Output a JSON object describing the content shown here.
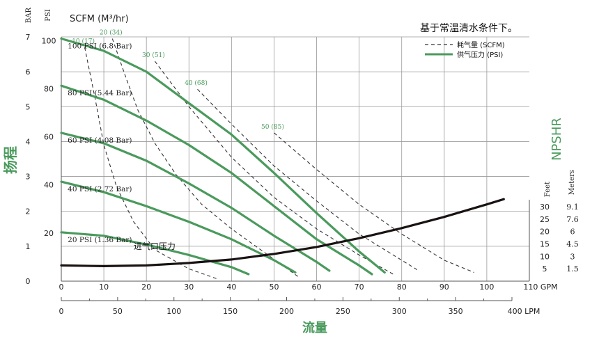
{
  "chart_data": {
    "type": "line",
    "note": "基于常温清水条件下。",
    "legend": [
      {
        "label": "耗气量 (SCFM)",
        "style": "dashed",
        "color": "#333333"
      },
      {
        "label": "供气压力 (PSI)",
        "style": "solid",
        "color": "#4a9a5c"
      }
    ],
    "y_left_bar_title": "BAR",
    "y_left_psi_title": "PSI",
    "y_left_title": "扬程",
    "x_title": "流量",
    "right_title": "NPSHR",
    "right_feet_title": "Feet",
    "right_meters_title": "Meters",
    "scfm_title": "SCFM (M³/hr)",
    "x_gpm_unit": "110 GPM",
    "x_lpm_unit": "400 LPM",
    "x_gpm_ticks": [
      "0",
      "10",
      "20",
      "30",
      "40",
      "50",
      "60",
      "70",
      "80",
      "90",
      "100"
    ],
    "x_lpm_ticks": [
      "0",
      "50",
      "100",
      "150",
      "200",
      "250",
      "300",
      "350"
    ],
    "y_bar_ticks": [
      "0",
      "1",
      "2",
      "3",
      "4",
      "5",
      "6",
      "7"
    ],
    "y_psi_ticks": [
      "20",
      "40",
      "60",
      "80",
      "100"
    ],
    "npshr_feet_ticks": [
      "5",
      "10",
      "15",
      "20",
      "25",
      "30"
    ],
    "npshr_meters_ticks": [
      "1.5",
      "3",
      "4.5",
      "6",
      "7.6",
      "9.1"
    ],
    "xlim": [
      0,
      110
    ],
    "ylim": [
      0,
      7
    ],
    "pressure_curves": [
      {
        "name": "100 PSI (6.8 Bar)",
        "points": [
          [
            0,
            6.95
          ],
          [
            10,
            6.6
          ],
          [
            20,
            6.0
          ],
          [
            30,
            5.1
          ],
          [
            40,
            4.2
          ],
          [
            50,
            3.1
          ],
          [
            60,
            1.95
          ],
          [
            70,
            0.85
          ],
          [
            76,
            0.25
          ]
        ]
      },
      {
        "name": "80 PSI (5.44 Bar)",
        "points": [
          [
            0,
            5.6
          ],
          [
            10,
            5.2
          ],
          [
            20,
            4.6
          ],
          [
            30,
            3.9
          ],
          [
            40,
            3.1
          ],
          [
            50,
            2.15
          ],
          [
            60,
            1.2
          ],
          [
            70,
            0.45
          ],
          [
            73,
            0.2
          ]
        ]
      },
      {
        "name": "60 PSI (4.08 Bar)",
        "points": [
          [
            0,
            4.25
          ],
          [
            10,
            3.95
          ],
          [
            20,
            3.45
          ],
          [
            30,
            2.8
          ],
          [
            40,
            2.1
          ],
          [
            50,
            1.3
          ],
          [
            60,
            0.55
          ],
          [
            63,
            0.3
          ]
        ]
      },
      {
        "name": "40 PSI (2.72 Bar)",
        "points": [
          [
            0,
            2.85
          ],
          [
            10,
            2.55
          ],
          [
            20,
            2.15
          ],
          [
            30,
            1.7
          ],
          [
            40,
            1.2
          ],
          [
            50,
            0.6
          ],
          [
            55,
            0.25
          ]
        ]
      },
      {
        "name": "20 PSI (1.36 Bar)",
        "points": [
          [
            0,
            1.4
          ],
          [
            10,
            1.3
          ],
          [
            20,
            1.05
          ],
          [
            30,
            0.75
          ],
          [
            40,
            0.4
          ],
          [
            44,
            0.2
          ]
        ]
      }
    ],
    "air_curves": [
      {
        "name": "10 (17)",
        "points": [
          [
            5.5,
            6.7
          ],
          [
            8,
            5.2
          ],
          [
            10,
            3.9
          ],
          [
            13,
            2.7
          ],
          [
            17,
            1.7
          ],
          [
            22,
            0.9
          ],
          [
            30,
            0.35
          ],
          [
            37,
            0.05
          ]
        ]
      },
      {
        "name": "20 (34)",
        "points": [
          [
            12,
            6.95
          ],
          [
            15,
            5.9
          ],
          [
            18,
            4.9
          ],
          [
            22,
            3.95
          ],
          [
            27,
            3.05
          ],
          [
            33,
            2.2
          ],
          [
            40,
            1.5
          ],
          [
            48,
            0.8
          ],
          [
            56,
            0.1
          ]
        ]
      },
      {
        "name": "30 (51)",
        "points": [
          [
            22,
            6.3
          ],
          [
            30,
            5.0
          ],
          [
            40,
            3.55
          ],
          [
            50,
            2.4
          ],
          [
            60,
            1.5
          ],
          [
            70,
            0.75
          ],
          [
            78,
            0.2
          ]
        ]
      },
      {
        "name": "40 (68)",
        "points": [
          [
            32,
            5.5
          ],
          [
            40,
            4.5
          ],
          [
            50,
            3.3
          ],
          [
            60,
            2.3
          ],
          [
            70,
            1.35
          ],
          [
            80,
            0.6
          ],
          [
            84,
            0.3
          ]
        ]
      },
      {
        "name": "50 (85)",
        "points": [
          [
            50,
            4.25
          ],
          [
            60,
            3.2
          ],
          [
            70,
            2.2
          ],
          [
            80,
            1.35
          ],
          [
            90,
            0.6
          ],
          [
            97,
            0.25
          ]
        ]
      }
    ],
    "air_inlet_label": "进气口压力",
    "npshr_curve": {
      "name": "进气口压力",
      "points": [
        [
          0,
          0.45
        ],
        [
          10,
          0.43
        ],
        [
          20,
          0.45
        ],
        [
          30,
          0.52
        ],
        [
          40,
          0.62
        ],
        [
          50,
          0.78
        ],
        [
          60,
          0.98
        ],
        [
          70,
          1.23
        ],
        [
          80,
          1.52
        ],
        [
          90,
          1.84
        ],
        [
          100,
          2.2
        ],
        [
          104,
          2.35
        ]
      ]
    }
  }
}
